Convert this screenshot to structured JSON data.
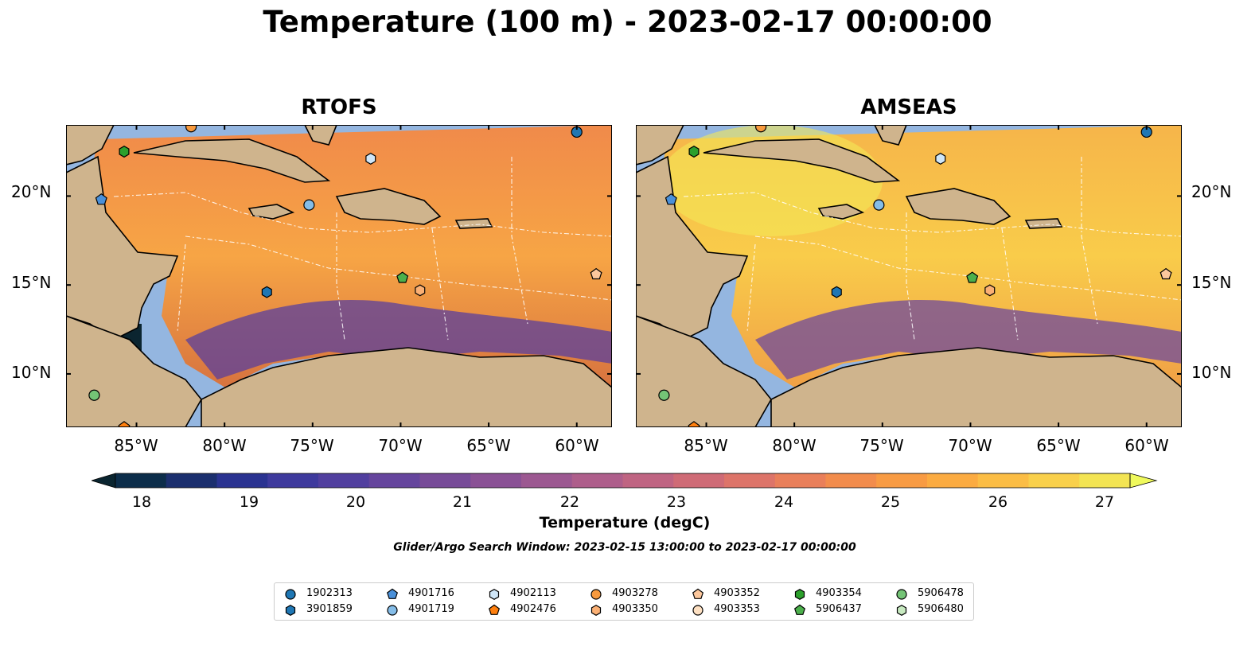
{
  "figure": {
    "title": "Temperature (100 m) - 2023-02-17 00:00:00",
    "search_window_note": "Glider/Argo Search Window: 2023-02-15 13:00:00 to 2023-02-17 00:00:00"
  },
  "panels": [
    {
      "title": "RTOFS",
      "model_id": "rtofs"
    },
    {
      "title": "AMSEAS",
      "model_id": "amseas"
    }
  ],
  "map_extent": {
    "lon_min": -89,
    "lon_max": -58,
    "lat_min": 7,
    "lat_max": 24
  },
  "axes": {
    "lon_ticks": [
      "85°W",
      "80°W",
      "75°W",
      "70°W",
      "65°W",
      "60°W"
    ],
    "lat_ticks": [
      "20°N",
      "15°N",
      "10°N"
    ]
  },
  "colorbar": {
    "label": "Temperature (degC)",
    "ticks": [
      "18",
      "19",
      "20",
      "21",
      "22",
      "23",
      "24",
      "25",
      "26",
      "27"
    ],
    "colors": [
      "#0a2530",
      "#0c2d4a",
      "#1b2f6e",
      "#2a3391",
      "#3e3a9d",
      "#513f9f",
      "#65459d",
      "#774b98",
      "#8a5195",
      "#9c5891",
      "#ae5e8b",
      "#bf6482",
      "#cf6b76",
      "#dd7469",
      "#e97f5a",
      "#f28c4c",
      "#f89b43",
      "#fbab41",
      "#fbbd45",
      "#f9d04b",
      "#f3e453",
      "#eff95c"
    ]
  },
  "legend": [
    {
      "id": "1902313",
      "marker": "circle",
      "color": "#1f77b4"
    },
    {
      "id": "3901859",
      "marker": "hexagon",
      "color": "#1f77b4"
    },
    {
      "id": "4901716",
      "marker": "pentagon",
      "color": "#4a90d9"
    },
    {
      "id": "4901719",
      "marker": "circle",
      "color": "#85bde8"
    },
    {
      "id": "4902113",
      "marker": "hexagon",
      "color": "#cfe6f8"
    },
    {
      "id": "4902476",
      "marker": "pentagon",
      "color": "#ff7f0e"
    },
    {
      "id": "4903278",
      "marker": "circle",
      "color": "#f89a3e"
    },
    {
      "id": "4903350",
      "marker": "hexagon",
      "color": "#fbb074"
    },
    {
      "id": "4903352",
      "marker": "pentagon",
      "color": "#fcc79c"
    },
    {
      "id": "4903353",
      "marker": "circle",
      "color": "#fde0c2"
    },
    {
      "id": "4903354",
      "marker": "hexagon",
      "color": "#2ca02c"
    },
    {
      "id": "5906437",
      "marker": "pentagon",
      "color": "#4cb04c"
    },
    {
      "id": "5906478",
      "marker": "circle",
      "color": "#74c476"
    },
    {
      "id": "5906480",
      "marker": "hexagon",
      "color": "#c7e9c0"
    }
  ],
  "floats": [
    {
      "id": "1902313",
      "lon": -60.0,
      "lat": 23.6
    },
    {
      "id": "3901859",
      "lon": -77.6,
      "lat": 14.6
    },
    {
      "id": "4901716",
      "lon": -87.0,
      "lat": 19.8
    },
    {
      "id": "4901719",
      "lon": -75.2,
      "lat": 19.5
    },
    {
      "id": "4902113",
      "lon": -71.7,
      "lat": 22.1
    },
    {
      "id": "4902476",
      "lon": -85.7,
      "lat": 7.0
    },
    {
      "id": "4903278",
      "lon": -81.9,
      "lat": 23.9
    },
    {
      "id": "4903350",
      "lon": -68.9,
      "lat": 14.7
    },
    {
      "id": "4903352",
      "lon": -58.9,
      "lat": 15.6
    },
    {
      "id": "4903354",
      "lon": -85.7,
      "lat": 22.5
    },
    {
      "id": "5906437",
      "lon": -69.9,
      "lat": 15.4
    },
    {
      "id": "5906478",
      "lon": -87.4,
      "lat": 8.8
    }
  ]
}
